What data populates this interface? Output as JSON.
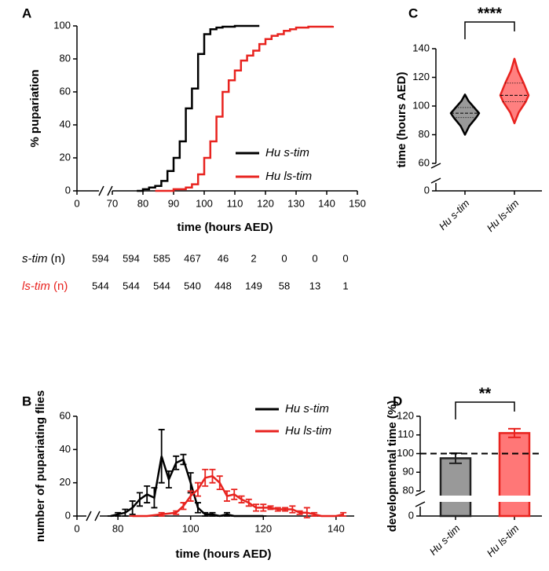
{
  "chart_data": [
    {
      "panel": "A",
      "type": "step",
      "xlabel": "time (hours AED)",
      "ylabel": "% pupariation",
      "xlim": [
        0,
        150
      ],
      "xbreak": [
        0,
        70
      ],
      "xticks": [
        0,
        70,
        80,
        90,
        100,
        110,
        120,
        130,
        140,
        150
      ],
      "ylim": [
        0,
        100
      ],
      "yticks": [
        0,
        20,
        40,
        60,
        80,
        100
      ],
      "legend": "lower right",
      "series": [
        {
          "name": "Hu s-tim",
          "color": "#000000",
          "x": [
            78,
            80,
            82,
            84,
            86,
            88,
            90,
            92,
            94,
            96,
            98,
            100,
            102,
            104,
            106,
            110,
            118
          ],
          "values": [
            0,
            1,
            2,
            3,
            6,
            12,
            20,
            30,
            50,
            62,
            83,
            95,
            98,
            99,
            99.5,
            100,
            100
          ]
        },
        {
          "name": "Hu ls-tim",
          "color": "#e8231f",
          "x": [
            84,
            90,
            94,
            96,
            98,
            100,
            102,
            104,
            106,
            108,
            110,
            112,
            114,
            116,
            118,
            120,
            122,
            124,
            126,
            128,
            130,
            134,
            142
          ],
          "values": [
            0,
            1,
            2,
            4,
            10,
            20,
            30,
            45,
            60,
            67,
            73,
            79,
            82,
            85,
            89,
            92,
            94,
            95,
            97,
            98,
            99,
            99.5,
            100
          ]
        }
      ]
    },
    {
      "panel": "B",
      "type": "line",
      "xlabel": "time (hours AED)",
      "ylabel": "number of pupariating flies",
      "xlim": [
        0,
        145
      ],
      "xbreak": [
        0,
        75
      ],
      "xticks": [
        0,
        80,
        100,
        120,
        140
      ],
      "ylim": [
        0,
        60
      ],
      "yticks": [
        0,
        20,
        40,
        60
      ],
      "legend": "upper right",
      "series": [
        {
          "name": "Hu s-tim",
          "color": "#000000",
          "x": [
            78,
            80,
            82,
            84,
            86,
            88,
            90,
            92,
            94,
            96,
            98,
            100,
            102,
            104,
            106,
            108,
            110,
            112,
            116,
            120
          ],
          "values": [
            0,
            1,
            2,
            5,
            10,
            13,
            11,
            36,
            22,
            32,
            34,
            20,
            5,
            1,
            1,
            0,
            1,
            0,
            0,
            0
          ],
          "errors": [
            0,
            1,
            2,
            4,
            4,
            5,
            6,
            16,
            5,
            4,
            3,
            6,
            3,
            1,
            1,
            0,
            1,
            0,
            0,
            0
          ]
        },
        {
          "name": "Hu ls-tim",
          "color": "#e8231f",
          "x": [
            84,
            88,
            92,
            96,
            98,
            100,
            102,
            104,
            106,
            108,
            110,
            112,
            114,
            116,
            118,
            120,
            122,
            124,
            126,
            128,
            130,
            132,
            134,
            136,
            140,
            142
          ],
          "values": [
            0,
            0,
            1,
            2,
            6,
            12,
            16,
            23,
            24,
            20,
            12,
            13,
            10,
            8,
            5,
            5,
            5,
            4,
            4,
            4,
            2,
            2,
            1,
            0,
            0,
            1
          ],
          "errors": [
            0,
            0,
            1,
            1,
            2,
            3,
            4,
            5,
            4,
            4,
            3,
            3,
            2,
            2,
            2,
            2,
            1,
            1,
            1,
            2,
            1,
            3,
            1,
            0,
            0,
            1
          ]
        }
      ]
    },
    {
      "panel": "C",
      "type": "violin",
      "ylabel": "time (hours AED)",
      "categories": [
        "Hu s-tim",
        "Hu ls-tim"
      ],
      "colors": [
        "#000000",
        "#e8231f"
      ],
      "fills": [
        "#999999",
        "#ff8080"
      ],
      "min": [
        80,
        88
      ],
      "q1": [
        92,
        103
      ],
      "median": [
        95,
        107.5
      ],
      "q3": [
        99,
        116
      ],
      "max": [
        108,
        133
      ],
      "ylim": [
        0,
        140
      ],
      "ybreak": [
        0,
        60
      ],
      "yticks": [
        0,
        60,
        80,
        100,
        120,
        140
      ],
      "significance": "****"
    },
    {
      "panel": "D",
      "type": "bar",
      "ylabel": "developmental time (%)",
      "categories": [
        "Hu s-tim",
        "Hu ls-tim"
      ],
      "colors": [
        "#222222",
        "#e8231f"
      ],
      "fills": [
        "#999999",
        "#ff7777"
      ],
      "values": [
        97.5,
        111
      ],
      "errors": [
        2.7,
        2.3
      ],
      "reference": 100,
      "ylim": [
        0,
        120
      ],
      "ybreak": [
        0,
        80
      ],
      "yticks": [
        0,
        80,
        90,
        100,
        110,
        120
      ],
      "significance": "**"
    }
  ],
  "n_table": {
    "rows": [
      {
        "name": "s-tim",
        "unit": "(n)",
        "color": "#000000",
        "values": [
          594,
          594,
          585,
          467,
          46,
          2,
          0,
          0,
          0
        ]
      },
      {
        "name": "ls-tim",
        "unit": "(n)",
        "color": "#e8231f",
        "values": [
          544,
          544,
          544,
          540,
          448,
          149,
          58,
          13,
          1
        ]
      }
    ]
  }
}
